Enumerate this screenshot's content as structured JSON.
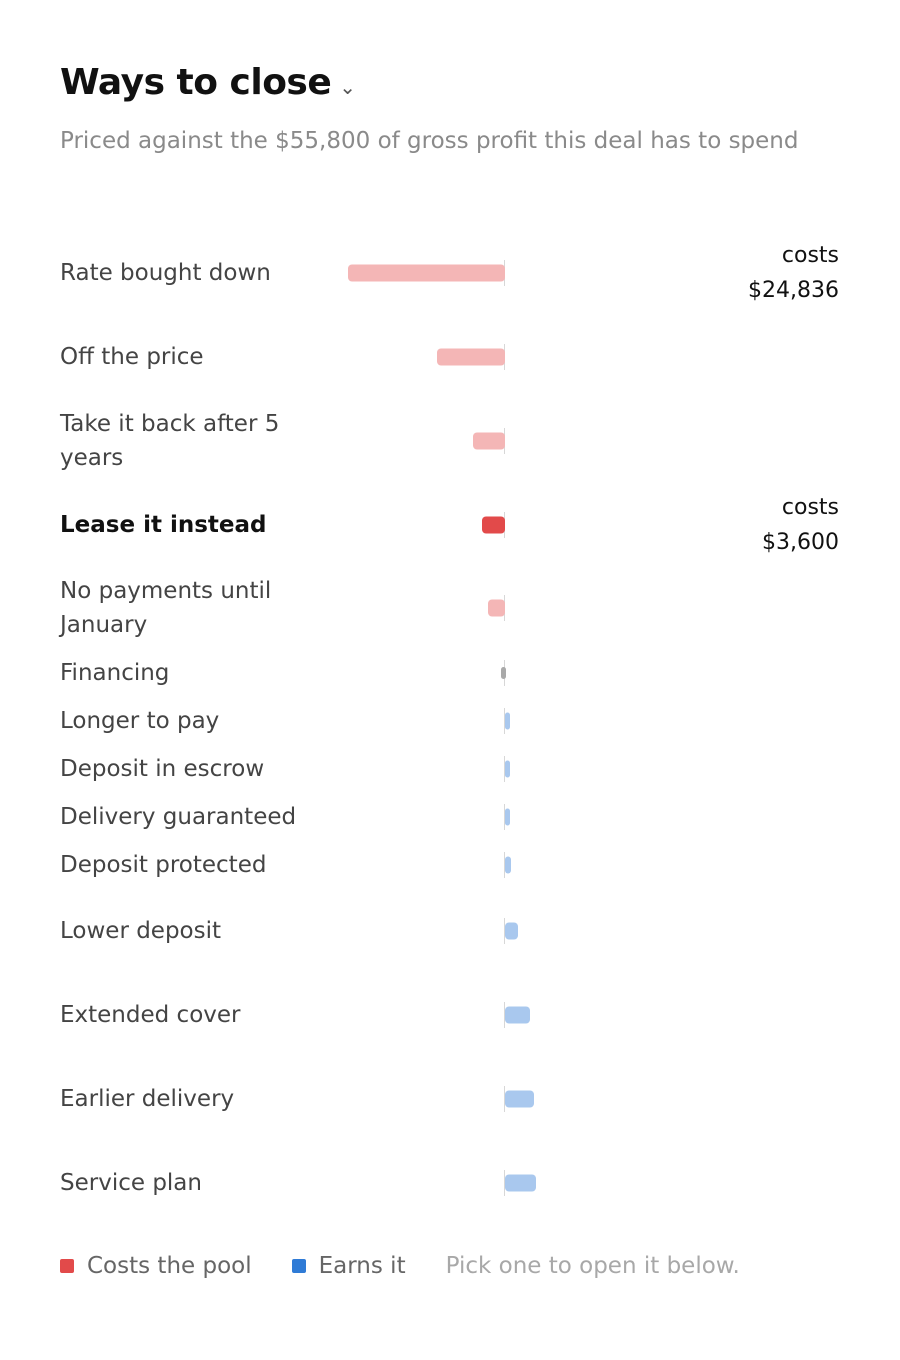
{
  "header": {
    "title": "Ways to close",
    "chevron": "⌄",
    "subtitle": "Priced against the $55,800 of gross profit this deal has to spend"
  },
  "chart_data": {
    "type": "bar",
    "orientation": "horizontal",
    "units": "$",
    "categories": [
      "Rate bought down",
      "Off the price",
      "Take it back after 5 years",
      "Lease it instead",
      "No payments until January",
      "Financing",
      "Longer to pay",
      "Deposit in escrow",
      "Delivery guaranteed",
      "Deposit protected",
      "Lower deposit",
      "Extended cover",
      "Earlier delivery",
      "Service plan"
    ],
    "values": [
      -24836,
      -10800,
      -5100,
      -3600,
      -2700,
      -600,
      500,
      600,
      600,
      900,
      2000,
      3900,
      4600,
      4900
    ],
    "kinds": [
      "cost",
      "cost",
      "cost",
      "cost",
      "cost",
      "neutral",
      "earn",
      "earn",
      "earn",
      "earn",
      "earn",
      "earn",
      "earn",
      "earn"
    ],
    "selected_index": 3,
    "value_labels": [
      {
        "index": 0,
        "prefix": "costs",
        "amount": "$24,836"
      },
      {
        "index": 3,
        "prefix": "costs",
        "amount": "$3,600"
      }
    ],
    "colors": {
      "cost": "#f4b6b6",
      "cost_selected": "#e24a4a",
      "earn": "#a9c8ee",
      "neutral": "#a9a9a9"
    }
  },
  "legend": {
    "items": [
      {
        "label": "Costs the pool",
        "color": "#e24a4a"
      },
      {
        "label": "Earns it",
        "color": "#2f7bd6"
      }
    ],
    "hint": "Pick one to open it below."
  }
}
